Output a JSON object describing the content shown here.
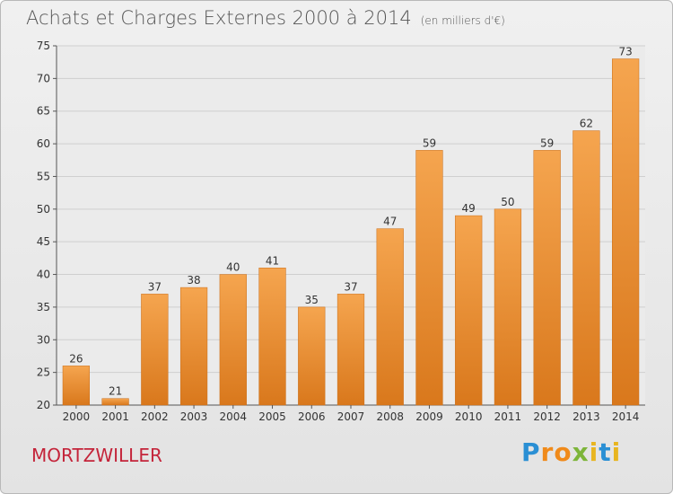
{
  "header": {
    "title": "Achats et Charges Externes 2000 à 2014",
    "subtitle": "(en milliers d'€)"
  },
  "footer": {
    "place": "MORTZWILLER",
    "logo_letters": [
      "P",
      "r",
      "o",
      "x",
      "i",
      "t",
      "i"
    ]
  },
  "colors": {
    "bar_top": "#f5a54f",
    "bar_bottom": "#d9781c",
    "place": "#c4243a",
    "grid": "#cfcfcf"
  },
  "chart_data": {
    "type": "bar",
    "title": "Achats et Charges Externes 2000 à 2014",
    "subtitle": "(en milliers d'€)",
    "categories": [
      "2000",
      "2001",
      "2002",
      "2003",
      "2004",
      "2005",
      "2006",
      "2007",
      "2008",
      "2009",
      "2010",
      "2011",
      "2012",
      "2013",
      "2014"
    ],
    "values": [
      26,
      21,
      37,
      38,
      40,
      41,
      35,
      37,
      47,
      59,
      49,
      50,
      59,
      62,
      73
    ],
    "ylim": [
      20,
      75
    ],
    "yticks": [
      20,
      25,
      30,
      35,
      40,
      45,
      50,
      55,
      60,
      65,
      70,
      75
    ],
    "grid": true,
    "legend": "none",
    "xlabel": "",
    "ylabel": ""
  }
}
